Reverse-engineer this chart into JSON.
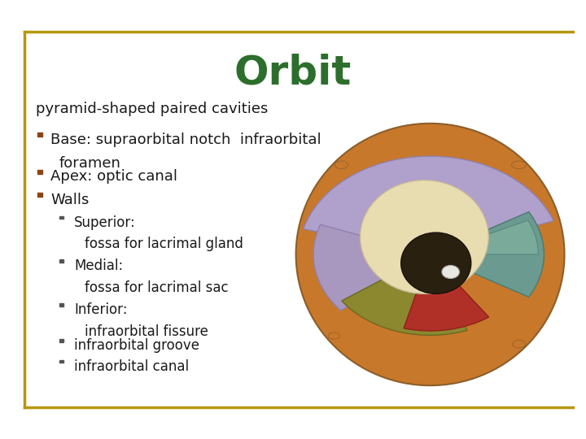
{
  "title": "Orbit",
  "title_color": "#2d6e2d",
  "title_fontsize": 36,
  "title_fontstyle": "bold",
  "background_color": "#ffffff",
  "border_color": "#b8960c",
  "slide_text": {
    "intro": "pyramid-shaped paired cavities",
    "bullet1_line1": "Base: supraorbital notch  infraorbital",
    "bullet1_line2": "foramen",
    "bullet2": "Apex: optic canal",
    "bullet3": "Walls",
    "sub1_label": "Superior:",
    "sub1_cont": "fossa for lacrimal gland",
    "sub2_label": "Medial:",
    "sub2_cont": "fossa for lacrimal sac",
    "sub3_label": "Inferior:",
    "sub3_cont": "infraorbital fissure",
    "sub4": "infraorbital groove",
    "sub5": "infraorbital canal"
  },
  "bullet_color": "#8b4513",
  "text_color": "#1a1a1a",
  "text_fontsize": 13,
  "sub_fontsize": 12
}
